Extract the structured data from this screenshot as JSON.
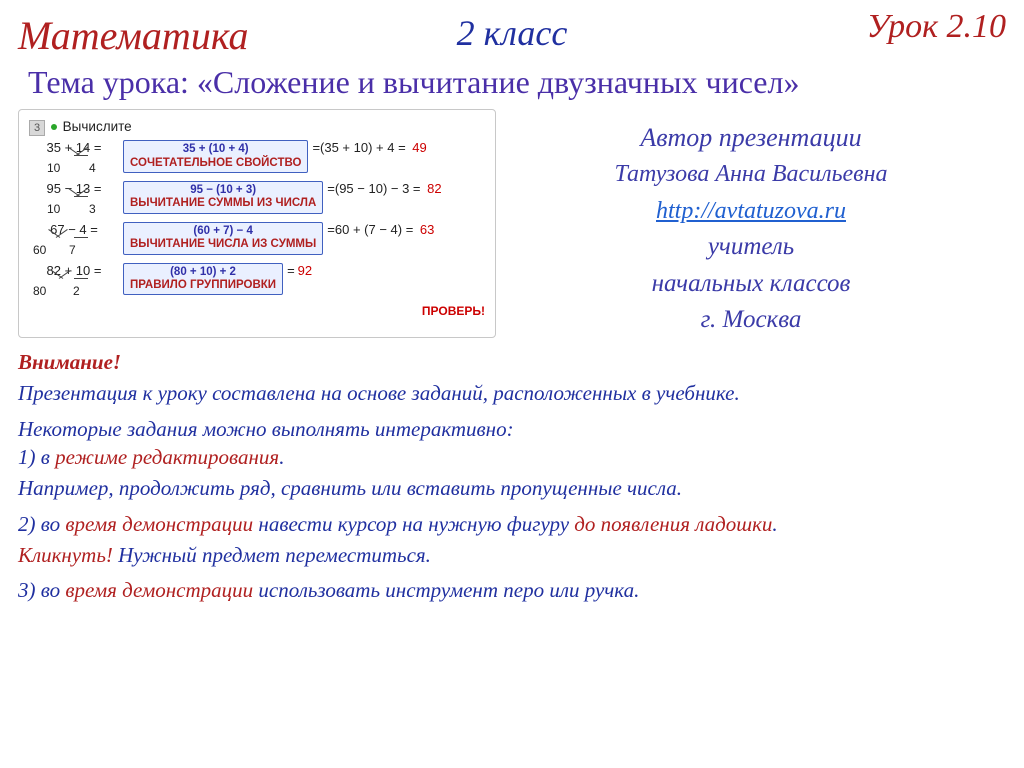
{
  "header": {
    "subject": "Математика",
    "grade": "2 класс",
    "lesson_number": "Урок 2.10"
  },
  "topic_prefix": "Тема урока: ",
  "topic_title": "«Сложение и вычитание двузначных чисел»",
  "panel": {
    "task_number": "3",
    "task_label": "Вычислите",
    "rows": [
      {
        "left": "35 + 14 =",
        "split_l": "10",
        "split_r": "4",
        "split_lx": 18,
        "split_rx": 60,
        "ang_lx": 37,
        "ang_rx": 47,
        "rule_top": "35 + (10 + 4)",
        "rule_bottom": "СОЧЕТАТЕЛЬНОЕ СВОЙСТВО",
        "rule_color": "#b02020",
        "after": "(35 + 10) + 4 =",
        "result": "49"
      },
      {
        "left": "95 − 13 =",
        "split_l": "10",
        "split_r": "3",
        "split_lx": 18,
        "split_rx": 60,
        "ang_lx": 37,
        "ang_rx": 47,
        "rule_top": "95 − (10 + 3)",
        "rule_bottom": "ВЫЧИТАНИЕ СУММЫ ИЗ ЧИСЛА",
        "rule_color": "#b02020",
        "after": "(95 − 10) − 3 =",
        "result": "82"
      },
      {
        "left": "67 − 4 =",
        "split_l": "60",
        "split_r": "7",
        "split_lx": 4,
        "split_rx": 40,
        "ang_lx": 17,
        "ang_rx": 27,
        "rule_top": "(60 + 7) − 4",
        "rule_bottom": "ВЫЧИТАНИЕ ЧИСЛА ИЗ СУММЫ",
        "rule_color": "#b02020",
        "after": "60 + (7 − 4) =",
        "result": "63"
      },
      {
        "left": "82 + 10 =",
        "split_l": "80",
        "split_r": "2",
        "split_lx": 4,
        "split_rx": 44,
        "ang_lx": 20,
        "ang_rx": 30,
        "rule_top": "(80 + 10) + 2",
        "rule_bottom": "ПРАВИЛО ГРУППИРОВКИ",
        "rule_color": "#b02020",
        "after": "",
        "result": "92"
      }
    ],
    "check": "ПРОВЕРЬ!"
  },
  "author": {
    "title": "Автор презентации",
    "name": "Татузова Анна Васильевна",
    "link": "http://avtatuzova.ru",
    "role1": "учитель",
    "role2": "начальных классов",
    "city": "г. Москва"
  },
  "notes": {
    "attention": "Внимание!",
    "l1": "Презентация к уроку составлена на основе заданий, расположенных в учебнике.",
    "l2": "Некоторые задания можно выполнять интерактивно:",
    "l3a": "1) в ",
    "l3b": "режиме редактирования",
    "l3c": ".",
    "l4": "Например, продолжить ряд, сравнить или вставить пропущенные числа.",
    "l5a": "2) во ",
    "l5b": "время демонстрации",
    "l5c": " навести курсор на  нужную фигуру ",
    "l5d": "до появления ладошки",
    "l5e": ".",
    "l6a": "Кликнуть!",
    "l6b": " Нужный предмет переместиться.",
    "l7a": "3) во ",
    "l7b": "время демонстрации",
    "l7c": " использовать инструмент перо или ручка."
  },
  "colors": {
    "red": "#b02020",
    "blue": "#2030a0",
    "purple": "#4a2fa8",
    "rule_border": "#4060c0",
    "rule_bg": "#eaf0ff"
  }
}
